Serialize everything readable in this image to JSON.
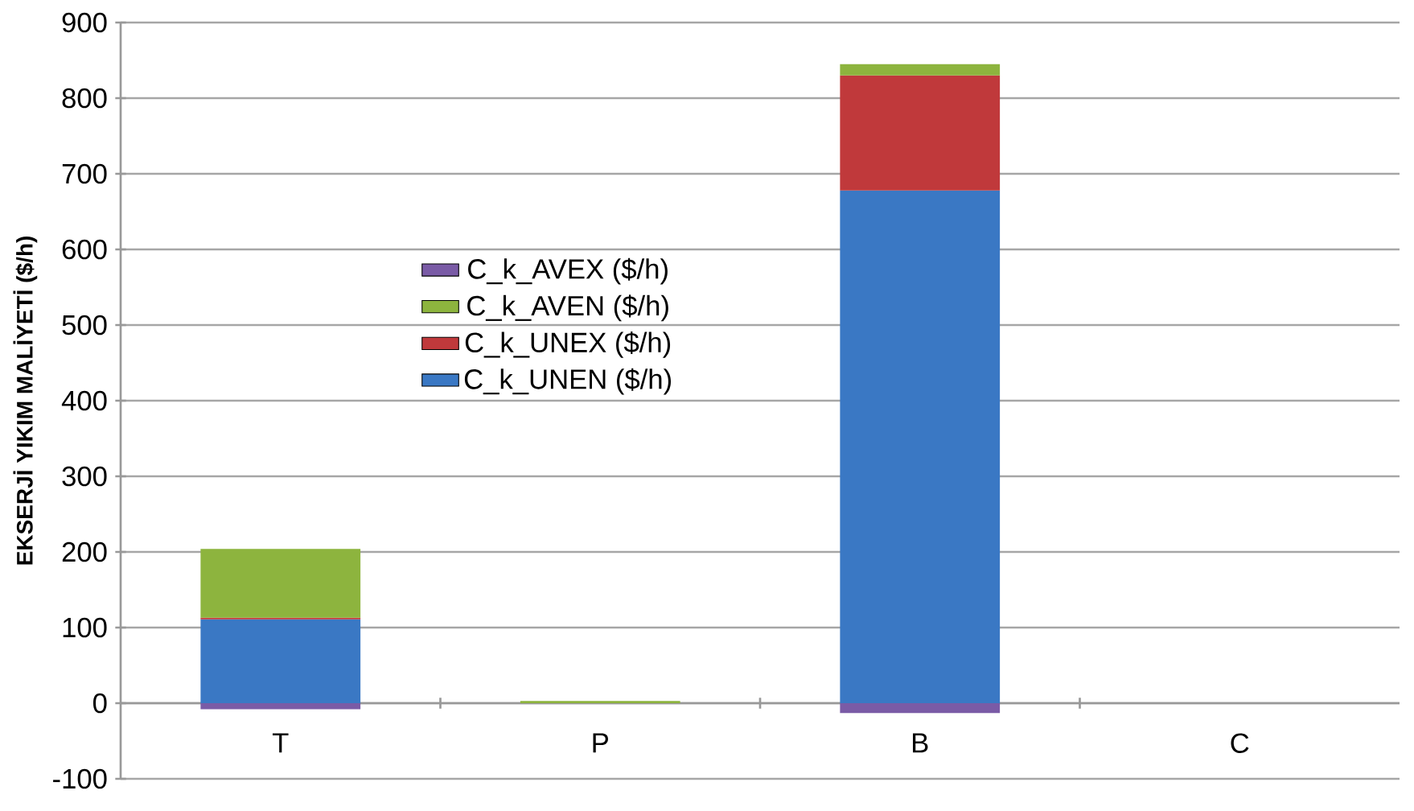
{
  "chart_data": {
    "type": "bar",
    "stacked": true,
    "ylabel": "EKSERJİ YIKIM MALİYETİ ($/h)",
    "categories": [
      "T",
      "P",
      "B",
      "C"
    ],
    "series": [
      {
        "name": "C_k_UNEN ($/h)",
        "color": "#3a78c4",
        "values": [
          111,
          0,
          678,
          0
        ]
      },
      {
        "name": "C_k_UNEX ($/h)",
        "color": "#c0393b",
        "values": [
          2,
          0,
          152,
          0
        ]
      },
      {
        "name": "C_k_AVEN ($/h)",
        "color": "#8db43e",
        "values": [
          91,
          3,
          15,
          0
        ]
      },
      {
        "name": "C_k_AVEX ($/h)",
        "color": "#7a5ba6",
        "values": [
          -8,
          0,
          -13,
          0
        ]
      }
    ],
    "ylim": [
      -100,
      900
    ],
    "yticks": [
      -100,
      0,
      100,
      200,
      300,
      400,
      500,
      600,
      700,
      800,
      900
    ],
    "grid": "y",
    "legend": "left"
  }
}
